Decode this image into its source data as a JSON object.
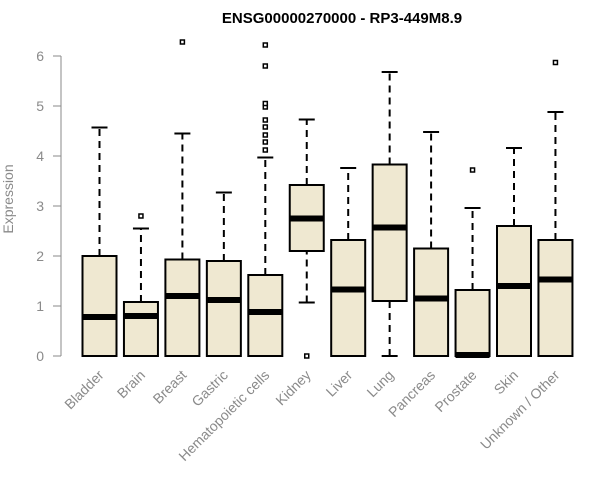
{
  "chart_data": {
    "type": "boxplot",
    "title": "ENSG00000270000 - RP3-449M8.9",
    "xlabel": "",
    "ylabel": "Expression",
    "ylim": [
      0,
      6
    ],
    "yticks": [
      0,
      1,
      2,
      3,
      4,
      5,
      6
    ],
    "grid": false,
    "legend": "none",
    "box_fill": "#efe8d1",
    "box_stroke": "#000000",
    "categories": [
      "Bladder",
      "Brain",
      "Breast",
      "Gastric",
      "Hematopoietic cells",
      "Kidney",
      "Liver",
      "Lung",
      "Pancreas",
      "Prostate",
      "Skin",
      "Unknown / Other"
    ],
    "boxes": [
      {
        "name": "Bladder",
        "min": 0,
        "q1": 0,
        "median": 0.78,
        "q3": 2.0,
        "max": 4.57,
        "outliers": []
      },
      {
        "name": "Brain",
        "min": 0,
        "q1": 0,
        "median": 0.8,
        "q3": 1.08,
        "max": 2.55,
        "outliers": [
          2.8
        ]
      },
      {
        "name": "Breast",
        "min": 0,
        "q1": 0,
        "median": 1.2,
        "q3": 1.93,
        "max": 4.45,
        "outliers": [
          6.28
        ]
      },
      {
        "name": "Gastric",
        "min": 0,
        "q1": 0,
        "median": 1.12,
        "q3": 1.9,
        "max": 3.27,
        "outliers": []
      },
      {
        "name": "Hematopoietic cells",
        "min": 0,
        "q1": 0,
        "median": 0.88,
        "q3": 1.62,
        "max": 3.97,
        "outliers": [
          4.12,
          4.28,
          4.42,
          4.58,
          4.72,
          4.98,
          5.05,
          5.8,
          6.22
        ]
      },
      {
        "name": "Kidney",
        "min": 1.07,
        "q1": 2.1,
        "median": 2.75,
        "q3": 3.42,
        "max": 4.73,
        "outliers": [
          0
        ]
      },
      {
        "name": "Liver",
        "min": 0,
        "q1": 0,
        "median": 1.33,
        "q3": 2.32,
        "max": 3.76,
        "outliers": []
      },
      {
        "name": "Lung",
        "min": 0,
        "q1": 1.1,
        "median": 2.57,
        "q3": 3.83,
        "max": 5.68,
        "outliers": []
      },
      {
        "name": "Pancreas",
        "min": 0,
        "q1": 0,
        "median": 1.15,
        "q3": 2.15,
        "max": 4.48,
        "outliers": []
      },
      {
        "name": "Prostate",
        "min": 0,
        "q1": 0,
        "median": 0.02,
        "q3": 1.32,
        "max": 2.96,
        "outliers": [
          3.72
        ]
      },
      {
        "name": "Skin",
        "min": 0,
        "q1": 0,
        "median": 1.4,
        "q3": 2.6,
        "max": 4.16,
        "outliers": []
      },
      {
        "name": "Unknown / Other",
        "min": 0,
        "q1": 0,
        "median": 1.53,
        "q3": 2.32,
        "max": 4.88,
        "outliers": [
          5.87
        ]
      }
    ]
  }
}
